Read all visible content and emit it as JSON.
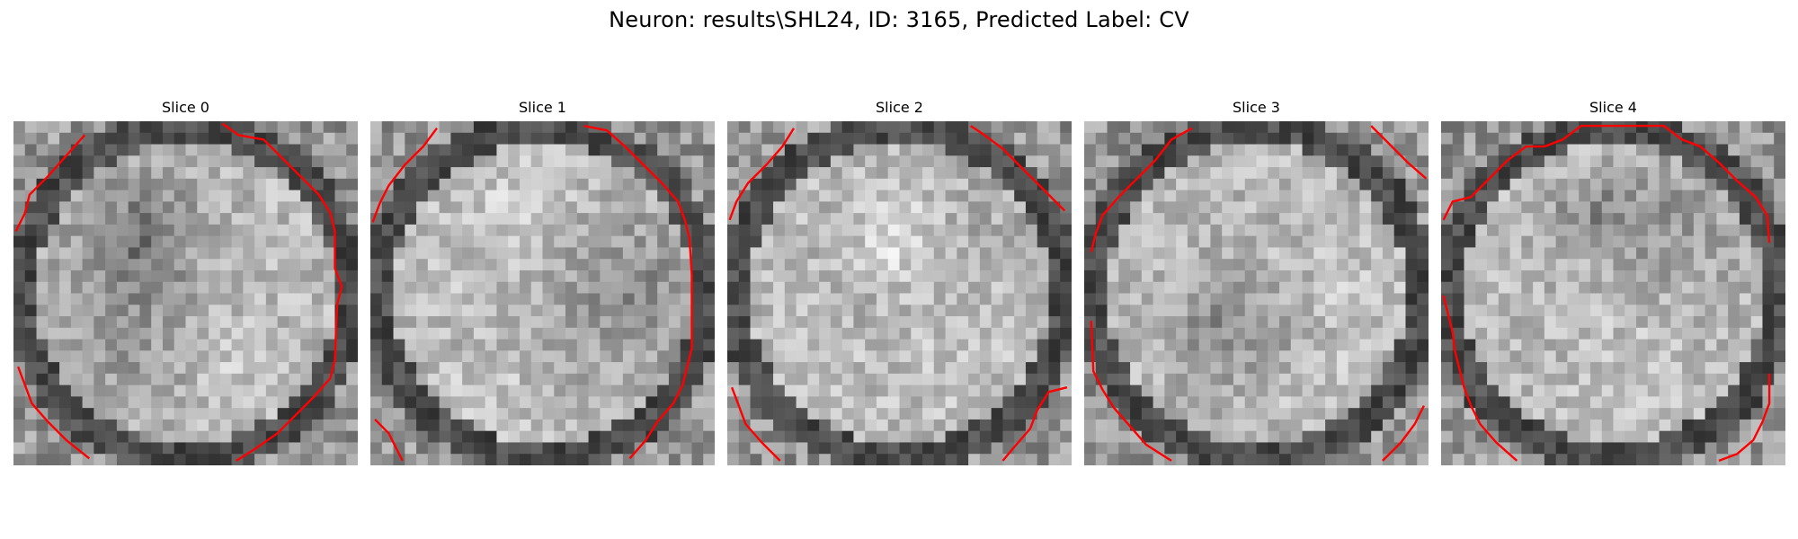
{
  "figure": {
    "title": "Neuron: results\\SHL24, ID: 3165, Predicted Label: CV"
  },
  "slices": [
    {
      "title": "Slice 0",
      "seed": 11
    },
    {
      "title": "Slice 1",
      "seed": 29
    },
    {
      "title": "Slice 2",
      "seed": 47
    },
    {
      "title": "Slice 3",
      "seed": 71
    },
    {
      "title": "Slice 4",
      "seed": 97
    }
  ],
  "colors": {
    "background": "#ffffff",
    "contour": "#ff0000",
    "image_colormap": "grayscale"
  },
  "image_grid": {
    "cells": 30
  }
}
